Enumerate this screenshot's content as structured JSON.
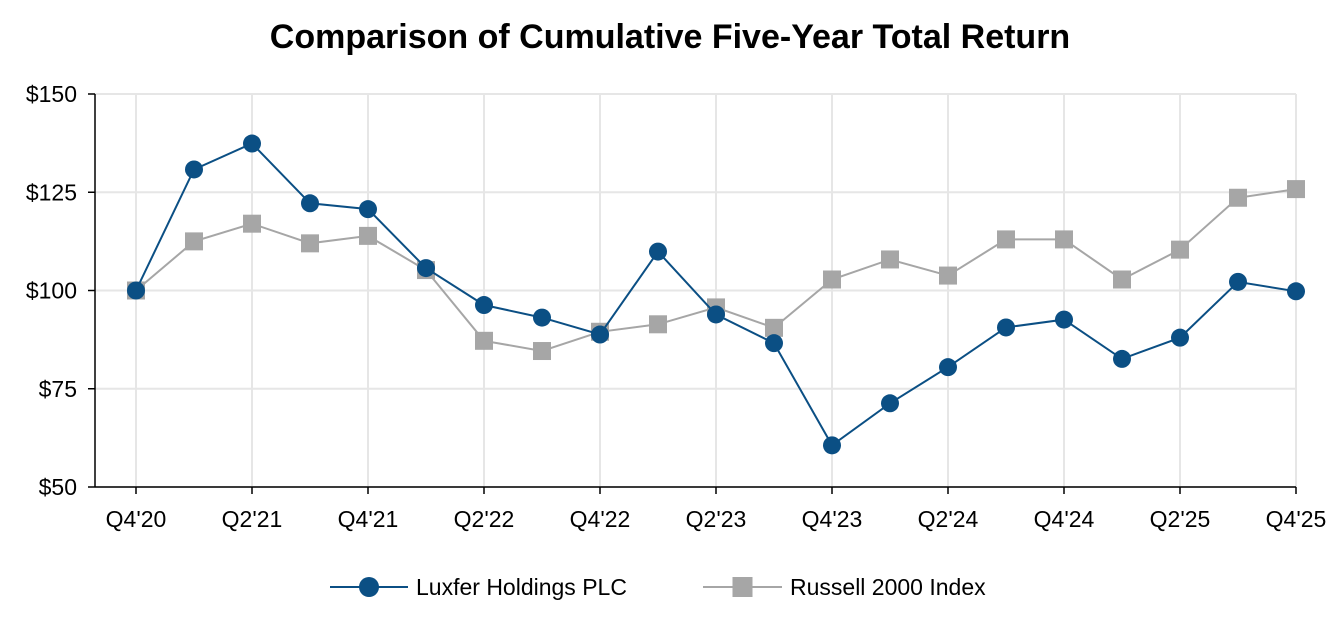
{
  "chart_data": {
    "type": "line",
    "title": "Comparison of Cumulative Five-Year Total Return",
    "xlabel": "",
    "ylabel": "",
    "categories": [
      "Q4'20",
      "Q1'21",
      "Q2'21",
      "Q3'21",
      "Q4'21",
      "Q1'22",
      "Q2'22",
      "Q3'22",
      "Q4'22",
      "Q1'23",
      "Q2'23",
      "Q3'23",
      "Q4'23",
      "Q1'24",
      "Q2'24",
      "Q3'24",
      "Q4'24",
      "Q1'25",
      "Q2'25",
      "Q3'25",
      "Q4'25"
    ],
    "x_tick_labels": [
      "Q4'20",
      "Q2'21",
      "Q4'21",
      "Q2'22",
      "Q4'22",
      "Q2'23",
      "Q4'23",
      "Q2'24",
      "Q4'24",
      "Q2'25",
      "Q4'25"
    ],
    "ylim": [
      50,
      150
    ],
    "y_ticks": [
      50,
      75,
      100,
      125,
      150
    ],
    "y_tick_labels": [
      "$50",
      "$75",
      "$100",
      "$125",
      "$150"
    ],
    "grid": true,
    "legend_position": "bottom-center",
    "series": [
      {
        "name": "Luxfer Holdings PLC",
        "color": "#0b4f84",
        "marker": "circle",
        "values": [
          100,
          130.8,
          137.4,
          122.2,
          120.7,
          105.7,
          96.3,
          93.1,
          88.8,
          109.9,
          93.9,
          86.6,
          60.6,
          71.3,
          80.5,
          90.6,
          92.6,
          82.6,
          88.0,
          102.2,
          99.8
        ]
      },
      {
        "name": "Russell 2000 Index",
        "color": "#a6a6a6",
        "marker": "square",
        "values": [
          100,
          112.5,
          117.0,
          112.0,
          113.9,
          105.2,
          87.2,
          84.6,
          89.5,
          91.4,
          95.7,
          90.5,
          102.8,
          107.9,
          103.8,
          113.0,
          113.0,
          102.8,
          110.4,
          123.6,
          125.8
        ]
      }
    ]
  }
}
